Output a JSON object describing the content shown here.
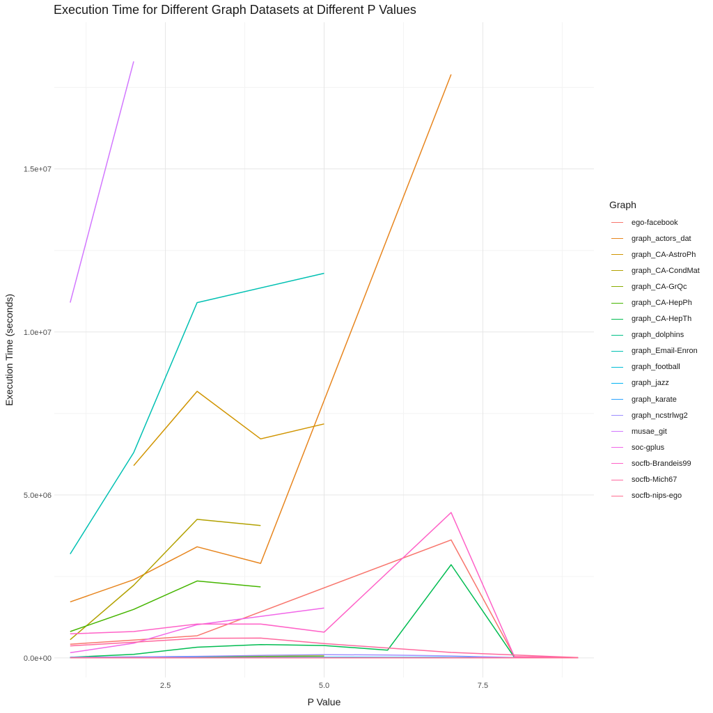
{
  "chart_data": {
    "type": "line",
    "title": "Execution Time for Different Graph Datasets at Different P Values",
    "xlabel": "P Value",
    "ylabel": "Execution Time (seconds)",
    "xlim": [
      0.75,
      9.25
    ],
    "ylim": [
      -600000,
      19500000
    ],
    "x_ticks": [
      2.5,
      5.0,
      7.5
    ],
    "x_tick_labels": [
      "2.5",
      "5.0",
      "7.5"
    ],
    "y_ticks": [
      0,
      5000000,
      10000000,
      15000000
    ],
    "y_tick_labels": [
      "0.0e+00",
      "5.0e+06",
      "1.0e+07",
      "1.5e+07"
    ],
    "grid": true,
    "legend_title": "Graph",
    "legend_position": "right",
    "series": [
      {
        "name": "ego-facebook",
        "color": "#F8766D",
        "points": [
          [
            1,
            420000
          ],
          [
            2,
            550000
          ],
          [
            3,
            680000
          ],
          [
            7,
            3620000
          ],
          [
            8,
            40000
          ],
          [
            9,
            10000
          ]
        ]
      },
      {
        "name": "graph_actors_dat",
        "color": "#E7851E",
        "points": [
          [
            1,
            1720000
          ],
          [
            2,
            2400000
          ],
          [
            3,
            3410000
          ],
          [
            4,
            2900000
          ],
          [
            5,
            7900000
          ],
          [
            7,
            17900000
          ]
        ]
      },
      {
        "name": "graph_CA-AstroPh",
        "color": "#D09400",
        "points": [
          [
            2,
            5900000
          ],
          [
            3,
            8180000
          ],
          [
            4,
            6720000
          ],
          [
            5,
            7180000
          ]
        ]
      },
      {
        "name": "graph_CA-CondMat",
        "color": "#B2A100",
        "points": [
          [
            1,
            560000
          ],
          [
            2,
            2230000
          ],
          [
            3,
            4250000
          ],
          [
            4,
            4060000
          ]
        ]
      },
      {
        "name": "graph_CA-GrQc",
        "color": "#89AC00",
        "points": [
          [
            1,
            20000
          ],
          [
            2,
            30000
          ],
          [
            3,
            40000
          ],
          [
            4,
            50000
          ],
          [
            5,
            60000
          ]
        ]
      },
      {
        "name": "graph_CA-HepPh",
        "color": "#45B500",
        "points": [
          [
            1,
            810000
          ],
          [
            2,
            1490000
          ],
          [
            3,
            2360000
          ],
          [
            4,
            2180000
          ]
        ]
      },
      {
        "name": "graph_CA-HepTh",
        "color": "#00BC51",
        "points": [
          [
            1,
            20000
          ],
          [
            2,
            110000
          ],
          [
            3,
            330000
          ],
          [
            4,
            410000
          ],
          [
            5,
            380000
          ],
          [
            6,
            240000
          ],
          [
            7,
            2860000
          ],
          [
            8,
            10000
          ]
        ]
      },
      {
        "name": "graph_dolphins",
        "color": "#00C087",
        "points": [
          [
            1,
            5000
          ],
          [
            2,
            5000
          ],
          [
            3,
            5000
          ],
          [
            4,
            5000
          ],
          [
            5,
            5000
          ],
          [
            6,
            5000
          ],
          [
            7,
            5000
          ],
          [
            8,
            5000
          ],
          [
            9,
            5000
          ]
        ]
      },
      {
        "name": "graph_Email-Enron",
        "color": "#00C0B2",
        "points": [
          [
            1,
            3190000
          ],
          [
            2,
            6300000
          ],
          [
            3,
            10900000
          ],
          [
            5,
            11800000
          ]
        ]
      },
      {
        "name": "graph_football",
        "color": "#00BCD6",
        "points": [
          [
            1,
            8000
          ],
          [
            2,
            8000
          ],
          [
            3,
            9000
          ],
          [
            4,
            10000
          ],
          [
            5,
            10000
          ],
          [
            6,
            10000
          ],
          [
            7,
            12000
          ],
          [
            8,
            5000
          ],
          [
            9,
            4000
          ]
        ]
      },
      {
        "name": "graph_jazz",
        "color": "#00B3F2",
        "points": [
          [
            1,
            10000
          ],
          [
            2,
            12000
          ],
          [
            3,
            15000
          ],
          [
            4,
            18000
          ],
          [
            5,
            20000
          ],
          [
            6,
            18000
          ],
          [
            7,
            15000
          ],
          [
            8,
            5000
          ],
          [
            9,
            4000
          ]
        ]
      },
      {
        "name": "graph_karate",
        "color": "#29A3FF",
        "points": [
          [
            1,
            3000
          ],
          [
            2,
            3000
          ],
          [
            3,
            3000
          ],
          [
            4,
            3000
          ],
          [
            5,
            3000
          ],
          [
            6,
            3000
          ],
          [
            7,
            3000
          ],
          [
            8,
            3000
          ],
          [
            9,
            3000
          ]
        ]
      },
      {
        "name": "graph_ncstrlwg2",
        "color": "#9C8DFF",
        "points": [
          [
            1,
            20000
          ],
          [
            2,
            30000
          ],
          [
            3,
            50000
          ],
          [
            4,
            80000
          ],
          [
            5,
            100000
          ],
          [
            6,
            90000
          ],
          [
            7,
            60000
          ],
          [
            8,
            10000
          ],
          [
            9,
            5000
          ]
        ]
      },
      {
        "name": "musae_git",
        "color": "#D277FF",
        "points": [
          [
            1,
            10900000
          ],
          [
            2,
            18300000
          ]
        ]
      },
      {
        "name": "soc-gplus",
        "color": "#F166E8",
        "points": [
          [
            1,
            160000
          ],
          [
            2,
            450000
          ],
          [
            3,
            1020000
          ],
          [
            5,
            1530000
          ]
        ]
      },
      {
        "name": "socfb-Brandeis99",
        "color": "#FF61C7",
        "points": [
          [
            1,
            740000
          ],
          [
            2,
            810000
          ],
          [
            3,
            1040000
          ],
          [
            4,
            1040000
          ],
          [
            5,
            790000
          ],
          [
            7,
            4460000
          ],
          [
            8,
            30000
          ],
          [
            9,
            5000
          ]
        ]
      },
      {
        "name": "socfb-Mich67",
        "color": "#FF689E",
        "points": [
          [
            1,
            370000
          ],
          [
            2,
            480000
          ],
          [
            3,
            600000
          ],
          [
            4,
            610000
          ],
          [
            5,
            440000
          ],
          [
            7,
            170000
          ],
          [
            9,
            10000
          ]
        ]
      },
      {
        "name": "socfb-nips-ego",
        "color": "#FF6C90",
        "points": [
          [
            1,
            5000
          ],
          [
            2,
            5000
          ],
          [
            3,
            5000
          ],
          [
            4,
            5000
          ],
          [
            5,
            5000
          ],
          [
            6,
            5000
          ],
          [
            7,
            5000
          ],
          [
            8,
            5000
          ],
          [
            9,
            5000
          ]
        ]
      }
    ]
  }
}
